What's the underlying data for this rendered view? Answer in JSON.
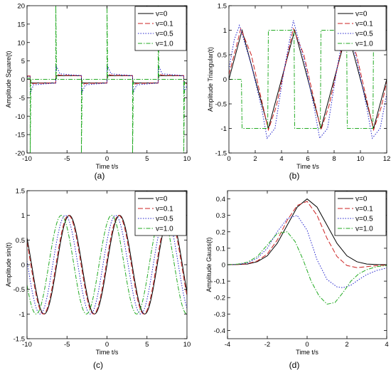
{
  "figure": {
    "legend_labels": [
      "v=0",
      "v=0.1",
      "v=0.5",
      "v=1.0"
    ],
    "series_styles": [
      {
        "color": "#000000",
        "dash": "none"
      },
      {
        "color": "#cc2222",
        "dash": "7,3"
      },
      {
        "color": "#2222cc",
        "dash": "1.5,2"
      },
      {
        "color": "#22aa22",
        "dash": "6,2,1.5,2"
      }
    ]
  },
  "chart_data": [
    {
      "panel": "(a)",
      "type": "line",
      "xlabel": "Time t/s",
      "ylabel": "Amplitude Square(t)",
      "xlim": [
        -10,
        10
      ],
      "ylim": [
        -20,
        20
      ],
      "xticks": [
        -10,
        -5,
        0,
        5,
        10
      ],
      "yticks": [
        20,
        15,
        10,
        5,
        0,
        -5,
        -10,
        -15,
        -20
      ],
      "tick_labels_x": [
        "-10",
        "-5",
        "0",
        "5",
        "10"
      ],
      "tick_labels_y": [
        "20",
        "15",
        "10",
        "5",
        "0",
        "-5",
        "-10",
        "-15",
        "-20"
      ],
      "legend_position": "top-right",
      "grid": false,
      "series": [
        {
          "name": "v=0",
          "x": [
            -10,
            -9.6,
            -9.6,
            -6.4,
            -6.4,
            -3.2,
            -3.2,
            0,
            0,
            3.2,
            3.2,
            6.4,
            6.4,
            9.6,
            9.6,
            10
          ],
          "y": [
            0.9,
            0.9,
            -1,
            -1,
            1,
            1,
            -1,
            -1,
            1,
            1,
            -1,
            -1,
            1,
            1,
            -1,
            -1
          ]
        },
        {
          "name": "v=0.1",
          "x": [
            -10,
            -9.6,
            -9.6,
            -9.2,
            -6.4,
            -6.4,
            -5.9,
            -3.2,
            -3.2,
            -2.7,
            0,
            0,
            0.5,
            3.2,
            3.2,
            3.7,
            6.4,
            6.4,
            6.9,
            9.6,
            9.6,
            10
          ],
          "y": [
            0.9,
            0.9,
            -1.5,
            -1.1,
            -1,
            1.6,
            1.1,
            1,
            -1.6,
            -1.1,
            -1,
            1.6,
            1.1,
            1,
            -1.6,
            -1.1,
            -1,
            1.6,
            1.1,
            1,
            -1.5,
            -1.1
          ]
        },
        {
          "name": "v=0.5",
          "x": [
            -10,
            -9.6,
            -9.6,
            -9.2,
            -6.4,
            -6.4,
            -5.9,
            -3.2,
            -3.2,
            -2.7,
            0,
            0,
            0.5,
            3.2,
            3.2,
            3.7,
            6.4,
            6.4,
            6.9,
            9.6,
            9.6,
            10
          ],
          "y": [
            0.7,
            0.7,
            -4,
            -1.5,
            -1,
            4,
            1.5,
            1,
            -4,
            -1.5,
            -1,
            4,
            1.5,
            1,
            -4,
            -1.5,
            -1,
            4,
            1.5,
            1,
            -4,
            -1.5
          ]
        },
        {
          "name": "v=1.0",
          "x": [
            -10,
            -9.6,
            -9.6,
            -9.5,
            -6.4,
            -6.4,
            -6.3,
            -3.2,
            -3.2,
            -3.1,
            0,
            0,
            0.1,
            3.2,
            3.2,
            3.3,
            6.4,
            6.4,
            6.5,
            9.6,
            9.6,
            9.7,
            10
          ],
          "y": [
            0.3,
            0.3,
            -20,
            0,
            0,
            20,
            0,
            0,
            -20,
            0,
            0,
            20,
            0,
            0,
            -20,
            0,
            0,
            20,
            0,
            0,
            -20,
            0,
            0
          ]
        }
      ]
    },
    {
      "panel": "(b)",
      "type": "line",
      "xlabel": "Time t/s",
      "ylabel": "Amplitude Triangular(t)",
      "xlim": [
        0,
        12
      ],
      "ylim": [
        -1.5,
        1.5
      ],
      "xticks": [
        0,
        2,
        4,
        6,
        8,
        10,
        12
      ],
      "yticks": [
        1.5,
        1,
        0.5,
        0,
        -0.5,
        -1,
        -1.5
      ],
      "tick_labels_x": [
        "0",
        "2",
        "4",
        "6",
        "8",
        "10",
        "12"
      ],
      "tick_labels_y": [
        "1.5",
        "1",
        "0.5",
        "0",
        "-0.5",
        "-1",
        "-1.5"
      ],
      "legend_position": "top-right",
      "grid": false,
      "series": [
        {
          "name": "v=0",
          "x": [
            0,
            1,
            3,
            5,
            7,
            9,
            11,
            12
          ],
          "y": [
            0,
            1,
            -1,
            1,
            -1,
            1,
            -1,
            0
          ]
        },
        {
          "name": "v=0.1",
          "x": [
            0,
            0.5,
            0.9,
            1.7,
            3,
            3.6,
            4.9,
            5.7,
            7,
            7.6,
            8.9,
            9.7,
            11,
            11.6,
            12
          ],
          "y": [
            0.1,
            0.6,
            1.03,
            0.5,
            -1.03,
            -0.55,
            1.03,
            0.5,
            -1.03,
            -0.55,
            1.03,
            0.5,
            -1.03,
            -0.55,
            -0.05
          ]
        },
        {
          "name": "v=0.5",
          "x": [
            0,
            0.4,
            0.8,
            1.7,
            2.5,
            2.9,
            3.5,
            4.2,
            4.9,
            5.8,
            6.5,
            6.9,
            7.5,
            8.2,
            8.9,
            9.8,
            10.5,
            10.9,
            11.5,
            12
          ],
          "y": [
            0.2,
            0.8,
            1.1,
            0.3,
            -0.6,
            -1.2,
            -1.0,
            0.2,
            1.2,
            0.3,
            -0.6,
            -1.2,
            -1.0,
            0.2,
            1.2,
            0.3,
            -0.6,
            -1.2,
            -1.0,
            -0.3
          ]
        },
        {
          "name": "v=1.0",
          "x": [
            0,
            0.95,
            1,
            2.95,
            3,
            4.95,
            5,
            6.95,
            7,
            8.95,
            9,
            10.95,
            11,
            12
          ],
          "y": [
            0,
            0,
            -1,
            -1,
            1,
            1,
            -1,
            -1,
            1,
            1,
            -1,
            -1,
            1,
            1
          ]
        }
      ]
    },
    {
      "panel": "(c)",
      "type": "line",
      "xlabel": "Time t/s",
      "ylabel": "Amplitude sin(t)",
      "xlim": [
        -10,
        10
      ],
      "ylim": [
        -1.5,
        1.5
      ],
      "xticks": [
        -10,
        -5,
        0,
        5,
        10
      ],
      "yticks": [
        1.5,
        1,
        0.5,
        0,
        -0.5,
        -1,
        -1.5
      ],
      "tick_labels_x": [
        "-10",
        "-5",
        "0",
        "5",
        "10"
      ],
      "tick_labels_y": [
        "1.5",
        "1",
        "0.5",
        "0",
        "-0.5",
        "-1",
        "-1.5"
      ],
      "legend_position": "top-right",
      "grid": false,
      "series": [
        {
          "name": "v=0",
          "function": "sin",
          "phase": 0
        },
        {
          "name": "v=0.1",
          "function": "sin",
          "phase": 0.1
        },
        {
          "name": "v=0.5",
          "function": "sin",
          "phase": 0.5
        },
        {
          "name": "v=1.0",
          "function": "sin",
          "phase": 1.0
        }
      ]
    },
    {
      "panel": "(d)",
      "type": "line",
      "xlabel": "Time t/s",
      "ylabel": "Amplitude Gauss(t)",
      "xlim": [
        -4,
        4
      ],
      "ylim": [
        -0.45,
        0.45
      ],
      "xticks": [
        -4,
        -2,
        0,
        2,
        4
      ],
      "yticks": [
        0.4,
        0.3,
        0.2,
        0.1,
        0,
        -0.1,
        -0.2,
        -0.3,
        -0.4
      ],
      "tick_labels_x": [
        "-4",
        "-2",
        "0",
        "2",
        "4"
      ],
      "tick_labels_y": [
        "0.4",
        "0.3",
        "0.2",
        "0.1",
        "0",
        "-0.1",
        "-0.2",
        "-0.3",
        "-0.4"
      ],
      "legend_position": "top-right",
      "grid": false,
      "series": [
        {
          "name": "v=0",
          "x": [
            -4,
            -3.5,
            -3,
            -2.5,
            -2,
            -1.5,
            -1,
            -0.5,
            0,
            0.5,
            1,
            1.5,
            2,
            2.5,
            3,
            3.5,
            4
          ],
          "y": [
            0,
            0.001,
            0.004,
            0.018,
            0.054,
            0.13,
            0.24,
            0.35,
            0.4,
            0.35,
            0.24,
            0.13,
            0.054,
            0.018,
            0.004,
            0.001,
            0
          ]
        },
        {
          "name": "v=0.1",
          "x": [
            -4,
            -3.5,
            -3,
            -2.5,
            -2,
            -1.5,
            -1,
            -0.5,
            0,
            0.5,
            1,
            1.5,
            2,
            2.5,
            3,
            3.5,
            4
          ],
          "y": [
            0,
            0.001,
            0.006,
            0.023,
            0.065,
            0.15,
            0.27,
            0.36,
            0.385,
            0.3,
            0.16,
            0.05,
            -0.005,
            -0.018,
            -0.012,
            -0.005,
            -0.002
          ]
        },
        {
          "name": "v=0.5",
          "x": [
            -4,
            -3.5,
            -3,
            -2.5,
            -2,
            -1.5,
            -1,
            -0.5,
            0,
            0.5,
            1,
            1.5,
            1.8,
            2.2,
            2.6,
            3,
            3.5,
            4
          ],
          "y": [
            0,
            0.002,
            0.01,
            0.04,
            0.1,
            0.2,
            0.28,
            0.3,
            0.21,
            0.03,
            -0.09,
            -0.135,
            -0.14,
            -0.125,
            -0.09,
            -0.06,
            -0.035,
            -0.02
          ]
        },
        {
          "name": "v=1.0",
          "x": [
            -4,
            -3.5,
            -3,
            -2.5,
            -2,
            -1.5,
            -1,
            -0.6,
            -0.2,
            0.2,
            0.6,
            1,
            1.4,
            1.8,
            2.2,
            2.6,
            3,
            3.5,
            4
          ],
          "y": [
            0,
            0.003,
            0.015,
            0.05,
            0.12,
            0.19,
            0.2,
            0.14,
            0.03,
            -0.1,
            -0.19,
            -0.24,
            -0.23,
            -0.17,
            -0.1,
            -0.055,
            -0.03,
            -0.012,
            -0.005
          ]
        }
      ]
    }
  ]
}
